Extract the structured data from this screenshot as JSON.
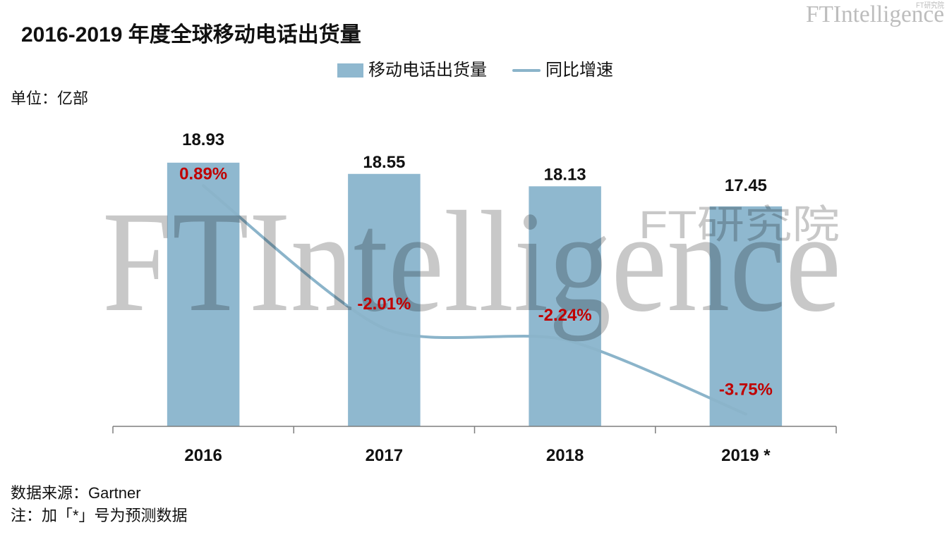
{
  "chart_data": {
    "type": "bar",
    "title": "2016-2019 年度全球移动电话出货量",
    "ylabel": "单位：亿部",
    "categories": [
      "2016",
      "2017",
      "2018",
      "2019 *"
    ],
    "series": [
      {
        "name": "移动电话出货量",
        "type": "bar",
        "values": [
          18.93,
          18.55,
          18.13,
          17.45
        ],
        "data_labels": [
          "18.93",
          "18.55",
          "18.13",
          "17.45"
        ]
      },
      {
        "name": "同比增速",
        "type": "line",
        "y_axis": "secondary",
        "smooth": true,
        "values": [
          0.89,
          -2.01,
          -2.24,
          -3.75
        ],
        "data_labels": [
          "0.89%",
          "-2.01%",
          "-2.24%",
          "-3.75%"
        ]
      }
    ],
    "ylim": [
      10,
      20
    ],
    "y2lim": [
      -4,
      2
    ],
    "grid": false,
    "legend_position": "top-center"
  },
  "logo": {
    "main": "FTIntelligence",
    "sub": "FT研究院"
  },
  "watermark": {
    "main": "FTIntelligence",
    "sub": "FT研究院"
  },
  "footer": {
    "source": "数据来源：Gartner",
    "note": "注：加「*」号为预测数据"
  },
  "colors": {
    "bar": "#8fb8cf",
    "line": "#8bb4ca",
    "growth_label": "#c00000",
    "text": "#111111",
    "axis": "#7f7f7f",
    "watermark": "#c8c8c8",
    "logo": "#bdbdbd"
  }
}
